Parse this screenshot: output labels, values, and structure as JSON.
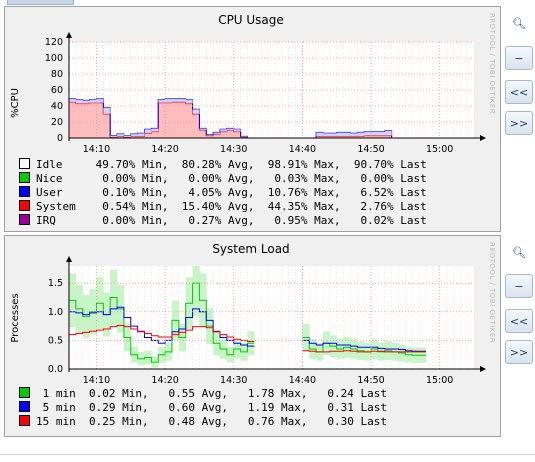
{
  "watermark": "RRDTOOL / TOBI OETIKER",
  "buttons": {
    "zoom_in": "zoom-in",
    "zoom_out": "zoom-out",
    "back": "<<",
    "forward": ">>"
  },
  "cpu": {
    "chart_data": {
      "type": "area",
      "title": "CPU Usage",
      "ylabel": "%CPU",
      "yticks": [
        "0",
        "20",
        "40",
        "60",
        "80",
        "100",
        "120"
      ],
      "ylim": [
        0,
        120
      ],
      "xticks": [
        "14:10",
        "14:20",
        "14:30",
        "14:40",
        "14:50",
        "15:00"
      ],
      "x": [
        "14:06",
        "14:07",
        "14:08",
        "14:09",
        "14:10",
        "14:11",
        "14:12",
        "14:13",
        "14:14",
        "14:15",
        "14:16",
        "14:17",
        "14:18",
        "14:19",
        "14:20",
        "14:21",
        "14:22",
        "14:23",
        "14:24",
        "14:25",
        "14:26",
        "14:27",
        "14:28",
        "14:29",
        "14:30",
        "14:31",
        "14:32",
        "14:33",
        "14:34",
        "14:35",
        "14:36",
        "14:37",
        "14:38",
        "14:39",
        "14:40",
        "14:41",
        "14:42",
        "14:43",
        "14:44",
        "14:45",
        "14:46",
        "14:47",
        "14:48",
        "14:49",
        "14:50",
        "14:51",
        "14:52",
        "14:53",
        "14:54",
        "14:55",
        "14:56",
        "14:57",
        "14:58",
        "14:59",
        "15:00",
        "15:01",
        "15:02",
        "15:03",
        "15:04",
        "15:05"
      ],
      "series": [
        {
          "name": "Idle",
          "color": "#ffffff",
          "values": [
            0,
            0,
            0,
            0,
            0,
            0,
            0,
            0,
            0,
            0,
            0,
            0,
            0,
            0,
            0,
            0,
            0,
            0,
            0,
            0,
            0,
            0,
            0,
            0,
            0,
            0,
            0,
            0,
            0,
            0,
            0,
            0,
            0,
            0,
            0,
            0,
            0,
            0,
            0,
            0,
            0,
            0,
            0,
            0,
            0,
            0,
            0,
            0,
            0,
            0,
            0,
            0,
            0,
            0,
            0,
            0,
            0,
            0,
            0,
            0
          ]
        },
        {
          "name": "Nice",
          "color": "#00cc00",
          "values": [
            0,
            0,
            0,
            0,
            0,
            0,
            0,
            0,
            0,
            0,
            0,
            0,
            0,
            0,
            0,
            0,
            0,
            0,
            0,
            0,
            0,
            0,
            0,
            0,
            0,
            0,
            0,
            0,
            0,
            0,
            0,
            0,
            0,
            0,
            0,
            0,
            0,
            0,
            0,
            0,
            0,
            0,
            0,
            0,
            0,
            0,
            0,
            0,
            0,
            0,
            0,
            0,
            0,
            0,
            0,
            0,
            0,
            0,
            0,
            0
          ]
        },
        {
          "name": "User",
          "color": "#0000ff",
          "values": [
            4,
            5,
            4,
            4,
            5,
            8,
            2,
            3,
            2,
            3,
            4,
            5,
            4,
            4,
            5,
            4,
            4,
            5,
            6,
            2,
            1,
            2,
            3,
            2,
            3,
            1,
            0,
            0,
            0,
            0,
            0,
            0,
            0,
            0,
            0,
            0,
            5,
            4,
            4,
            5,
            5,
            4,
            5,
            5,
            5,
            5,
            6,
            0,
            0,
            0,
            0,
            0,
            0,
            0,
            0,
            0,
            0,
            0,
            0,
            0
          ]
        },
        {
          "name": "System",
          "color": "#ff0000",
          "values": [
            45,
            43,
            43,
            44,
            44,
            30,
            1,
            2,
            1,
            2,
            2,
            6,
            8,
            44,
            44,
            45,
            45,
            43,
            30,
            10,
            3,
            5,
            8,
            10,
            8,
            1,
            0,
            0,
            0,
            0,
            0,
            0,
            0,
            0,
            0,
            0,
            2,
            2,
            2,
            2,
            2,
            2,
            2,
            3,
            3,
            3,
            3,
            0,
            0,
            0,
            0,
            0,
            0,
            0,
            0,
            0,
            0,
            0,
            0,
            0
          ]
        },
        {
          "name": "IRQ",
          "color": "#990099",
          "values": [
            0,
            0,
            0,
            0,
            0,
            0,
            0,
            0,
            0,
            0,
            0,
            0,
            0,
            0,
            0,
            0,
            0,
            0,
            0,
            0,
            0,
            0,
            0,
            0,
            0,
            0,
            0,
            0,
            0,
            0,
            0,
            0,
            0,
            0,
            0,
            0,
            0,
            0,
            0,
            0,
            0,
            0,
            0,
            0,
            0,
            0,
            0,
            0,
            0,
            0,
            0,
            0,
            0,
            0,
            0,
            0,
            0,
            0,
            0,
            0
          ]
        }
      ],
      "gap_minutes": [
        [
          "14:31",
          "14:41"
        ],
        [
          "14:53",
          "15:05"
        ]
      ]
    },
    "legend": [
      {
        "name": "Idle",
        "color": "#ffffff",
        "text": "Idle     49.70% Min,  80.28% Avg,  98.91% Max,  90.70% Last"
      },
      {
        "name": "Nice",
        "color": "#00cc00",
        "text": "Nice      0.00% Min,   0.00% Avg,   0.03% Max,   0.00% Last"
      },
      {
        "name": "User",
        "color": "#0000ff",
        "text": "User      0.10% Min,   4.05% Avg,  10.76% Max,   6.52% Last"
      },
      {
        "name": "System",
        "color": "#ff0000",
        "text": "System    0.54% Min,  15.40% Avg,  44.35% Max,   2.76% Last"
      },
      {
        "name": "IRQ",
        "color": "#990099",
        "text": "IRQ       0.00% Min,   0.27% Avg,   0.95% Max,   0.02% Last"
      }
    ]
  },
  "load": {
    "chart_data": {
      "type": "line",
      "title": "System Load",
      "ylabel": "Processes",
      "yticks": [
        "0.0",
        "0.5",
        "1.0",
        "1.5"
      ],
      "ylim": [
        0,
        1.8
      ],
      "xticks": [
        "14:10",
        "14:20",
        "14:30",
        "14:40",
        "14:50",
        "15:00"
      ],
      "x": [
        "14:06",
        "14:07",
        "14:08",
        "14:09",
        "14:10",
        "14:11",
        "14:12",
        "14:13",
        "14:14",
        "14:15",
        "14:16",
        "14:17",
        "14:18",
        "14:19",
        "14:20",
        "14:21",
        "14:22",
        "14:23",
        "14:24",
        "14:25",
        "14:26",
        "14:27",
        "14:28",
        "14:29",
        "14:30",
        "14:31",
        "14:32",
        "14:33",
        "14:34",
        "14:35",
        "14:36",
        "14:37",
        "14:38",
        "14:39",
        "14:40",
        "14:41",
        "14:42",
        "14:43",
        "14:44",
        "14:45",
        "14:46",
        "14:47",
        "14:48",
        "14:49",
        "14:50",
        "14:51",
        "14:52",
        "14:53",
        "14:54",
        "14:55",
        "14:56",
        "14:57"
      ],
      "series": [
        {
          "name": "1 min",
          "color": "#00cc00",
          "values": [
            1.2,
            1.05,
            0.92,
            1.0,
            1.15,
            0.95,
            1.25,
            1.05,
            0.55,
            0.25,
            0.18,
            0.2,
            0.12,
            0.25,
            0.3,
            0.85,
            0.55,
            1.15,
            1.5,
            1.2,
            0.75,
            0.45,
            0.35,
            0.25,
            0.35,
            0.3,
            0.45,
            null,
            null,
            null,
            null,
            null,
            null,
            null,
            0.55,
            0.35,
            0.3,
            0.45,
            0.4,
            0.35,
            0.38,
            0.35,
            0.32,
            0.3,
            0.35,
            0.3,
            0.32,
            0.3,
            0.28,
            0.25,
            0.24,
            0.24
          ]
        },
        {
          "name": "5 min",
          "color": "#0000ff",
          "values": [
            1.0,
            0.98,
            0.95,
            0.98,
            1.0,
            0.95,
            1.05,
            1.08,
            0.9,
            0.75,
            0.65,
            0.55,
            0.5,
            0.45,
            0.5,
            0.65,
            0.7,
            0.9,
            1.05,
            1.0,
            0.85,
            0.65,
            0.55,
            0.5,
            0.45,
            0.42,
            0.4,
            null,
            null,
            null,
            null,
            null,
            null,
            null,
            0.5,
            0.45,
            0.42,
            0.45,
            0.45,
            0.42,
            0.42,
            0.4,
            0.38,
            0.38,
            0.38,
            0.36,
            0.35,
            0.35,
            0.34,
            0.32,
            0.31,
            0.31
          ]
        },
        {
          "name": "15 min",
          "color": "#ff0000",
          "values": [
            0.6,
            0.62,
            0.64,
            0.66,
            0.68,
            0.7,
            0.74,
            0.76,
            0.74,
            0.7,
            0.66,
            0.62,
            0.58,
            0.56,
            0.56,
            0.6,
            0.64,
            0.68,
            0.74,
            0.74,
            0.72,
            0.66,
            0.6,
            0.56,
            0.52,
            0.5,
            0.48,
            null,
            null,
            null,
            null,
            null,
            null,
            null,
            0.32,
            0.31,
            0.3,
            0.3,
            0.31,
            0.31,
            0.32,
            0.31,
            0.3,
            0.3,
            0.31,
            0.31,
            0.3,
            0.3,
            0.3,
            0.3,
            0.3,
            0.3
          ]
        }
      ]
    },
    "legend": [
      {
        "name": "1 min",
        "color": "#00cc00",
        "text": " 1 min  0.02 Min,   0.55 Avg,   1.78 Max,   0.24 Last"
      },
      {
        "name": "5 min",
        "color": "#0000ff",
        "text": " 5 min  0.29 Min,   0.60 Avg,   1.19 Max,   0.31 Last"
      },
      {
        "name": "15 min",
        "color": "#ff0000",
        "text": "15 min  0.25 Min,   0.48 Avg,   0.76 Max,   0.30 Last"
      }
    ]
  }
}
